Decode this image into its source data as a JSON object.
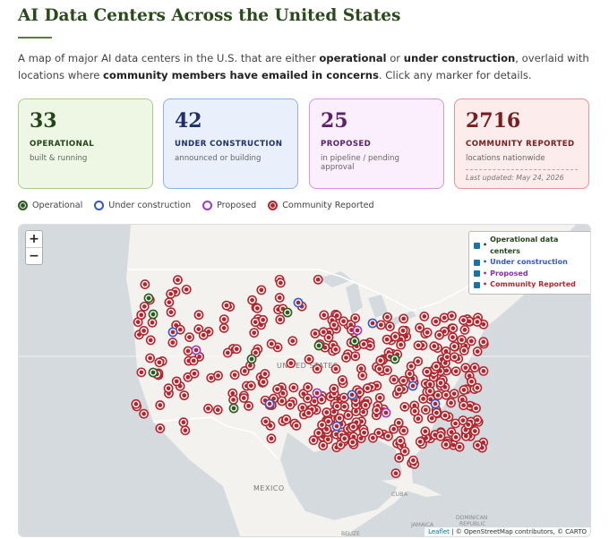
{
  "header": {
    "title": "AI Data Centers Across the United States"
  },
  "intro": [
    "A map of major AI data centers in the U.S. that are either ",
    "operational",
    " or ",
    "under construction",
    ", overlaid with locations where ",
    "community members have emailed in concerns",
    ". Click any marker for details."
  ],
  "cards": [
    {
      "value": 33,
      "label": "OPERATIONAL",
      "desc": "built & running"
    },
    {
      "value": 42,
      "label": "UNDER CONSTRUCTION",
      "desc": "announced or building"
    },
    {
      "value": 25,
      "label": "PROPOSED",
      "desc": "in pipeline / pending approval"
    },
    {
      "value": 2716,
      "label": "COMMUNITY REPORTED",
      "desc": "locations nationwide",
      "updated": "Last updated: May 24, 2026"
    }
  ],
  "legend": [
    "Operational",
    "Under construction",
    "Proposed",
    "Community Reported"
  ],
  "map": {
    "zoom": [
      "+",
      "−"
    ],
    "layers": [
      "Operational data centers",
      "Under construction",
      "Proposed",
      "Community Reported"
    ],
    "labels": [
      "UNITED STATES",
      "MEXICO",
      "CUBA",
      "JAMAICA",
      "BELIZE"
    ],
    "dominican": [
      "DOMINICAN",
      "REPUBLIC"
    ],
    "attribution": [
      "Leaflet",
      "| © OpenStreetMap contributors, © CARTO"
    ]
  }
}
